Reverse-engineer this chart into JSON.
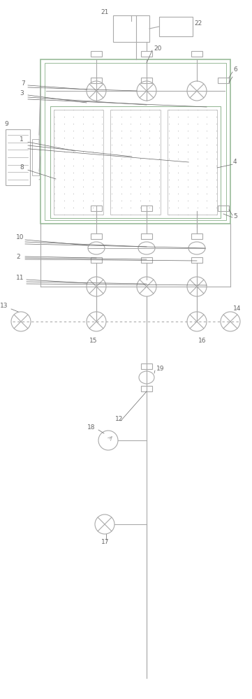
{
  "bg_color": "#ffffff",
  "lc": "#aaaaaa",
  "gc": "#99bb99",
  "tc": "#666666",
  "lw": 0.8,
  "fs": 6.5,
  "figsize": [
    3.61,
    10.0
  ],
  "dpi": 100
}
